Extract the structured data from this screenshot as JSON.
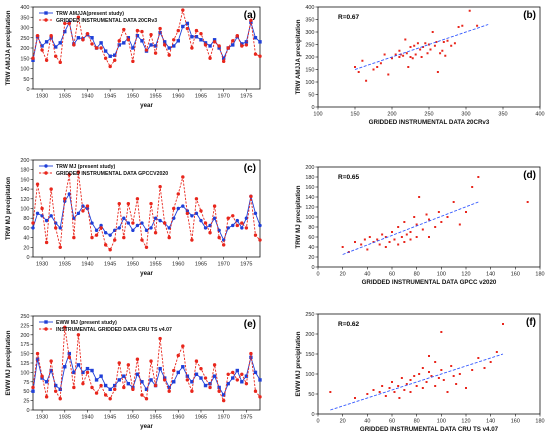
{
  "colors": {
    "series_blue": "#1f3fd8",
    "series_red": "#e8261c",
    "fit_line": "#3358ff",
    "scatter_point": "#e8261c"
  },
  "chart_data": [
    {
      "id": "a",
      "panel_label": "(a)",
      "type": "line",
      "xlabel": "year",
      "ylabel": "TRW AMJJA precipitation",
      "xlim": [
        1928,
        1978
      ],
      "ylim": [
        0,
        400
      ],
      "yticks": [
        0,
        50,
        100,
        150,
        200,
        250,
        300,
        350,
        400
      ],
      "xticks": [
        1930,
        1935,
        1940,
        1945,
        1950,
        1955,
        1960,
        1965,
        1970,
        1975
      ],
      "x": [
        1928,
        1929,
        1930,
        1931,
        1932,
        1933,
        1934,
        1935,
        1936,
        1937,
        1938,
        1939,
        1940,
        1941,
        1942,
        1943,
        1944,
        1945,
        1946,
        1947,
        1948,
        1949,
        1950,
        1951,
        1952,
        1953,
        1954,
        1955,
        1956,
        1957,
        1958,
        1959,
        1960,
        1961,
        1962,
        1963,
        1964,
        1965,
        1966,
        1967,
        1968,
        1969,
        1970,
        1971,
        1972,
        1973,
        1974,
        1975,
        1976,
        1977,
        1978
      ],
      "series": [
        {
          "name": "TRW AMJJA(present study)",
          "marker": "square",
          "color_key": "series_blue",
          "dash": false,
          "values": [
            140,
            255,
            210,
            230,
            250,
            205,
            225,
            280,
            325,
            220,
            250,
            245,
            265,
            250,
            200,
            225,
            185,
            160,
            165,
            215,
            225,
            250,
            200,
            260,
            235,
            185,
            215,
            210,
            275,
            230,
            200,
            210,
            235,
            305,
            320,
            255,
            255,
            240,
            225,
            210,
            240,
            200,
            150,
            200,
            215,
            255,
            220,
            230,
            325,
            250,
            230
          ]
        },
        {
          "name": "GRIDDED INSTRUMENTAL DATA 20CRv3",
          "marker": "circle",
          "color_key": "series_red",
          "dash": true,
          "values": [
            150,
            260,
            190,
            140,
            260,
            160,
            130,
            320,
            320,
            215,
            350,
            240,
            270,
            220,
            200,
            200,
            150,
            110,
            140,
            235,
            290,
            240,
            135,
            285,
            280,
            190,
            265,
            175,
            295,
            215,
            165,
            240,
            285,
            385,
            295,
            200,
            285,
            270,
            215,
            150,
            230,
            210,
            135,
            200,
            235,
            260,
            210,
            215,
            335,
            170,
            160
          ]
        }
      ]
    },
    {
      "id": "b",
      "panel_label": "(b)",
      "type": "scatter",
      "xlabel": "GRIDDED INSTRUMENTAL DATA 20CRv3",
      "ylabel": "TRW AMJJA precipitation",
      "annotation": "R=0.67",
      "xlim": [
        100,
        400
      ],
      "ylim": [
        0,
        400
      ],
      "xticks": [
        100,
        150,
        200,
        250,
        300,
        350,
        400
      ],
      "yticks": [
        0,
        50,
        100,
        150,
        200,
        250,
        300,
        350,
        400
      ],
      "points": [
        [
          150,
          160
        ],
        [
          155,
          140
        ],
        [
          160,
          185
        ],
        [
          165,
          105
        ],
        [
          175,
          150
        ],
        [
          180,
          160
        ],
        [
          185,
          175
        ],
        [
          190,
          210
        ],
        [
          195,
          130
        ],
        [
          200,
          195
        ],
        [
          205,
          210
        ],
        [
          210,
          200
        ],
        [
          210,
          225
        ],
        [
          212,
          210
        ],
        [
          215,
          205
        ],
        [
          218,
          270
        ],
        [
          220,
          215
        ],
        [
          222,
          160
        ],
        [
          225,
          240
        ],
        [
          225,
          200
        ],
        [
          228,
          195
        ],
        [
          230,
          245
        ],
        [
          232,
          210
        ],
        [
          235,
          255
        ],
        [
          238,
          230
        ],
        [
          240,
          200
        ],
        [
          242,
          240
        ],
        [
          245,
          255
        ],
        [
          248,
          215
        ],
        [
          250,
          250
        ],
        [
          252,
          230
        ],
        [
          255,
          300
        ],
        [
          258,
          245
        ],
        [
          260,
          260
        ],
        [
          262,
          140
        ],
        [
          265,
          215
        ],
        [
          268,
          225
        ],
        [
          270,
          260
        ],
        [
          272,
          205
        ],
        [
          275,
          265
        ],
        [
          280,
          245
        ],
        [
          285,
          255
        ],
        [
          290,
          320
        ],
        [
          295,
          325
        ],
        [
          305,
          385
        ],
        [
          315,
          325
        ]
      ],
      "fit": [
        [
          150,
          150
        ],
        [
          330,
          330
        ]
      ]
    },
    {
      "id": "c",
      "panel_label": "(c)",
      "type": "line",
      "xlabel": "year",
      "ylabel": "TRW MJ precipitation",
      "xlim": [
        1928,
        1978
      ],
      "ylim": [
        0,
        200
      ],
      "yticks": [
        0,
        20,
        40,
        60,
        80,
        100,
        120,
        140,
        160,
        180,
        200
      ],
      "xticks": [
        1930,
        1935,
        1940,
        1945,
        1950,
        1955,
        1960,
        1965,
        1970,
        1975
      ],
      "x": [
        1928,
        1929,
        1930,
        1931,
        1932,
        1933,
        1934,
        1935,
        1936,
        1937,
        1938,
        1939,
        1940,
        1941,
        1942,
        1943,
        1944,
        1945,
        1946,
        1947,
        1948,
        1949,
        1950,
        1951,
        1952,
        1953,
        1954,
        1955,
        1956,
        1957,
        1958,
        1959,
        1960,
        1961,
        1962,
        1963,
        1964,
        1965,
        1966,
        1967,
        1968,
        1969,
        1970,
        1971,
        1972,
        1973,
        1974,
        1975,
        1976,
        1977,
        1978
      ],
      "series": [
        {
          "name": "TRW MJ (present study)",
          "marker": "circle",
          "color_key": "series_blue",
          "dash": false,
          "values": [
            60,
            90,
            85,
            75,
            85,
            70,
            60,
            115,
            130,
            80,
            90,
            105,
            100,
            70,
            55,
            65,
            50,
            45,
            55,
            60,
            80,
            70,
            55,
            65,
            70,
            55,
            60,
            80,
            75,
            70,
            60,
            80,
            100,
            105,
            95,
            85,
            90,
            75,
            60,
            65,
            80,
            55,
            35,
            60,
            65,
            75,
            60,
            80,
            125,
            90,
            65
          ]
        },
        {
          "name": "GRIDDED INSTRUMENTAL DATA GPCCV2020",
          "marker": "circle",
          "color_key": "series_red",
          "dash": true,
          "values": [
            70,
            150,
            100,
            30,
            140,
            60,
            20,
            120,
            170,
            40,
            175,
            95,
            105,
            40,
            45,
            60,
            25,
            15,
            35,
            110,
            40,
            110,
            70,
            120,
            35,
            20,
            110,
            50,
            145,
            70,
            40,
            100,
            130,
            165,
            90,
            35,
            120,
            95,
            70,
            50,
            105,
            40,
            25,
            80,
            85,
            65,
            70,
            60,
            125,
            45,
            35
          ]
        }
      ]
    },
    {
      "id": "d",
      "panel_label": "(d)",
      "type": "scatter",
      "xlabel": "GRIDDED INSTRUMENTAL DATA GPCC v2020",
      "ylabel": "TRW MJ precipitation",
      "annotation": "R=0.65",
      "xlim": [
        0,
        180
      ],
      "ylim": [
        0,
        200
      ],
      "xticks": [
        0,
        20,
        40,
        60,
        80,
        100,
        120,
        140,
        160,
        180
      ],
      "yticks": [
        0,
        20,
        40,
        60,
        80,
        100,
        120,
        140,
        160,
        180,
        200
      ],
      "points": [
        [
          20,
          40
        ],
        [
          25,
          30
        ],
        [
          30,
          50
        ],
        [
          35,
          45
        ],
        [
          38,
          55
        ],
        [
          40,
          35
        ],
        [
          42,
          60
        ],
        [
          45,
          50
        ],
        [
          48,
          55
        ],
        [
          50,
          45
        ],
        [
          52,
          65
        ],
        [
          55,
          60
        ],
        [
          55,
          40
        ],
        [
          58,
          50
        ],
        [
          60,
          70
        ],
        [
          62,
          55
        ],
        [
          65,
          45
        ],
        [
          65,
          80
        ],
        [
          68,
          60
        ],
        [
          70,
          90
        ],
        [
          70,
          50
        ],
        [
          72,
          65
        ],
        [
          75,
          70
        ],
        [
          75,
          55
        ],
        [
          78,
          100
        ],
        [
          80,
          85
        ],
        [
          80,
          60
        ],
        [
          82,
          140
        ],
        [
          85,
          75
        ],
        [
          88,
          105
        ],
        [
          90,
          95
        ],
        [
          90,
          60
        ],
        [
          95,
          80
        ],
        [
          98,
          110
        ],
        [
          100,
          90
        ],
        [
          105,
          100
        ],
        [
          110,
          130
        ],
        [
          115,
          85
        ],
        [
          120,
          110
        ],
        [
          125,
          160
        ],
        [
          130,
          180
        ],
        [
          170,
          130
        ]
      ],
      "fit": [
        [
          20,
          25
        ],
        [
          130,
          130
        ]
      ]
    },
    {
      "id": "e",
      "panel_label": "(e)",
      "type": "line",
      "xlabel": "year",
      "ylabel": "EWW MJ precipitation",
      "xlim": [
        1928,
        1978
      ],
      "ylim": [
        0,
        250
      ],
      "yticks": [
        0,
        25,
        50,
        75,
        100,
        125,
        150,
        175,
        200,
        225,
        250
      ],
      "xticks": [
        1930,
        1935,
        1940,
        1945,
        1950,
        1955,
        1960,
        1965,
        1970,
        1975
      ],
      "x": [
        1928,
        1929,
        1930,
        1931,
        1932,
        1933,
        1934,
        1935,
        1936,
        1937,
        1938,
        1939,
        1940,
        1941,
        1942,
        1943,
        1944,
        1945,
        1946,
        1947,
        1948,
        1949,
        1950,
        1951,
        1952,
        1953,
        1954,
        1955,
        1956,
        1957,
        1958,
        1959,
        1960,
        1961,
        1962,
        1963,
        1964,
        1965,
        1966,
        1967,
        1968,
        1969,
        1970,
        1971,
        1972,
        1973,
        1974,
        1975,
        1976,
        1977,
        1978
      ],
      "series": [
        {
          "name": "EWW MJ (present study)",
          "marker": "square",
          "color_key": "series_blue",
          "dash": false,
          "values": [
            50,
            135,
            85,
            75,
            105,
            65,
            55,
            115,
            150,
            100,
            120,
            100,
            110,
            105,
            80,
            90,
            65,
            55,
            65,
            80,
            90,
            70,
            60,
            95,
            75,
            55,
            80,
            65,
            110,
            85,
            60,
            75,
            100,
            115,
            90,
            75,
            95,
            85,
            65,
            70,
            90,
            60,
            40,
            70,
            85,
            105,
            75,
            90,
            140,
            100,
            80
          ]
        },
        {
          "name": "INSTRUMENTAL GRIDDED DATA CRU TS v4.07",
          "marker": "circle",
          "color_key": "series_red",
          "dash": true,
          "values": [
            60,
            150,
            90,
            35,
            130,
            50,
            30,
            220,
            140,
            60,
            200,
            70,
            100,
            60,
            45,
            65,
            40,
            30,
            55,
            125,
            60,
            120,
            55,
            135,
            40,
            30,
            130,
            65,
            190,
            80,
            50,
            105,
            145,
            170,
            80,
            50,
            130,
            110,
            85,
            60,
            120,
            50,
            25,
            95,
            100,
            80,
            95,
            70,
            150,
            50,
            35
          ]
        }
      ]
    },
    {
      "id": "f",
      "panel_label": "(f)",
      "type": "scatter",
      "xlabel": "GRIDDED INSTRUMENTAL DATA CRU TS v4.07",
      "ylabel": "EWW MJ precipitation",
      "annotation": "R=0.62",
      "xlim": [
        0,
        180
      ],
      "ylim": [
        0,
        250
      ],
      "xticks": [
        0,
        20,
        40,
        60,
        80,
        100,
        120,
        140,
        160,
        180
      ],
      "yticks": [
        0,
        50,
        100,
        150,
        200,
        250
      ],
      "points": [
        [
          10,
          55
        ],
        [
          30,
          40
        ],
        [
          40,
          50
        ],
        [
          45,
          60
        ],
        [
          50,
          55
        ],
        [
          52,
          70
        ],
        [
          55,
          45
        ],
        [
          58,
          65
        ],
        [
          60,
          80
        ],
        [
          62,
          55
        ],
        [
          65,
          70
        ],
        [
          66,
          40
        ],
        [
          68,
          90
        ],
        [
          70,
          60
        ],
        [
          72,
          75
        ],
        [
          75,
          85
        ],
        [
          75,
          55
        ],
        [
          78,
          95
        ],
        [
          80,
          70
        ],
        [
          82,
          100
        ],
        [
          85,
          65
        ],
        [
          85,
          115
        ],
        [
          88,
          80
        ],
        [
          90,
          105
        ],
        [
          90,
          145
        ],
        [
          92,
          95
        ],
        [
          95,
          130
        ],
        [
          95,
          70
        ],
        [
          98,
          90
        ],
        [
          100,
          205
        ],
        [
          100,
          110
        ],
        [
          102,
          85
        ],
        [
          105,
          55
        ],
        [
          108,
          120
        ],
        [
          110,
          95
        ],
        [
          112,
          75
        ],
        [
          115,
          100
        ],
        [
          120,
          65
        ],
        [
          125,
          110
        ],
        [
          130,
          140
        ],
        [
          135,
          115
        ],
        [
          140,
          130
        ],
        [
          145,
          155
        ],
        [
          150,
          225
        ]
      ],
      "fit": [
        [
          10,
          10
        ],
        [
          150,
          150
        ]
      ]
    }
  ]
}
